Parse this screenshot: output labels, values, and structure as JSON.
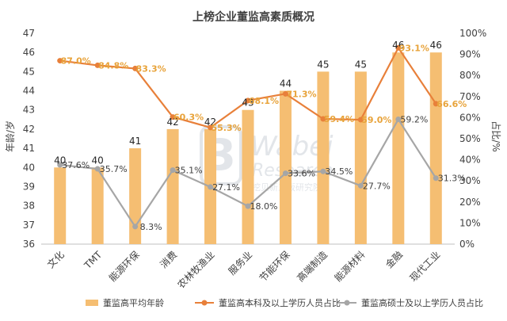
{
  "chart_data": {
    "type": "bar",
    "title": "上榜企业董监高素质概况",
    "categories": [
      "文化",
      "TMT",
      "能源环保",
      "消费",
      "农林牧渔业",
      "服务业",
      "节能环保",
      "高端制造",
      "能源材料",
      "金融",
      "现代工业"
    ],
    "ylabel_left": "年龄/岁",
    "ylabel_right": "占比/%",
    "ylim_left": [
      36,
      47
    ],
    "ylim_right": [
      0,
      100
    ],
    "yticks_left": [
      "36",
      "37",
      "38",
      "39",
      "40",
      "41",
      "42",
      "43",
      "44",
      "45",
      "46",
      "47"
    ],
    "yticks_right": [
      "0%",
      "10%",
      "20%",
      "30%",
      "40%",
      "50%",
      "60%",
      "70%",
      "80%",
      "90%",
      "100%"
    ],
    "grid": false,
    "legend_position": "bottom",
    "series": [
      {
        "name": "董监高平均年龄",
        "type": "bar",
        "axis": "left",
        "color": "#F5BE72",
        "values": [
          40,
          40,
          41,
          42,
          42,
          43,
          44,
          45,
          45,
          46,
          46
        ],
        "labels": [
          "40",
          "40",
          "41",
          "42",
          "42",
          "43",
          "44",
          "45",
          "45",
          "46",
          "46"
        ]
      },
      {
        "name": "董监高本科及以上学历人员占比",
        "type": "line",
        "axis": "right",
        "color": "#E8803A",
        "values": [
          87.0,
          84.8,
          83.3,
          60.3,
          55.3,
          68.1,
          71.3,
          59.4,
          59.0,
          93.1,
          66.6
        ],
        "labels": [
          "87.0%",
          "84.8%",
          "83.3%",
          "60.3%",
          "55.3%",
          "68.1%",
          "71.3%",
          "59.4%",
          "59.0%",
          "93.1%",
          "66.6%"
        ]
      },
      {
        "name": "董监高硕士及以上学历人员占比",
        "type": "line",
        "axis": "right",
        "color": "#A6A6A6",
        "values": [
          37.6,
          35.7,
          8.3,
          35.1,
          27.1,
          18.0,
          33.6,
          34.5,
          27.7,
          59.2,
          31.3
        ],
        "labels": [
          "37.6%",
          "35.7%",
          "8.3%",
          "35.1%",
          "27.1%",
          "18.0%",
          "33.6%",
          "34.5%",
          "27.7%",
          "59.2%",
          "31.3%"
        ]
      }
    ]
  },
  "watermark": {
    "brand": "Wabei",
    "sub": "Research",
    "tagline": "挖贝新三板研究院"
  }
}
